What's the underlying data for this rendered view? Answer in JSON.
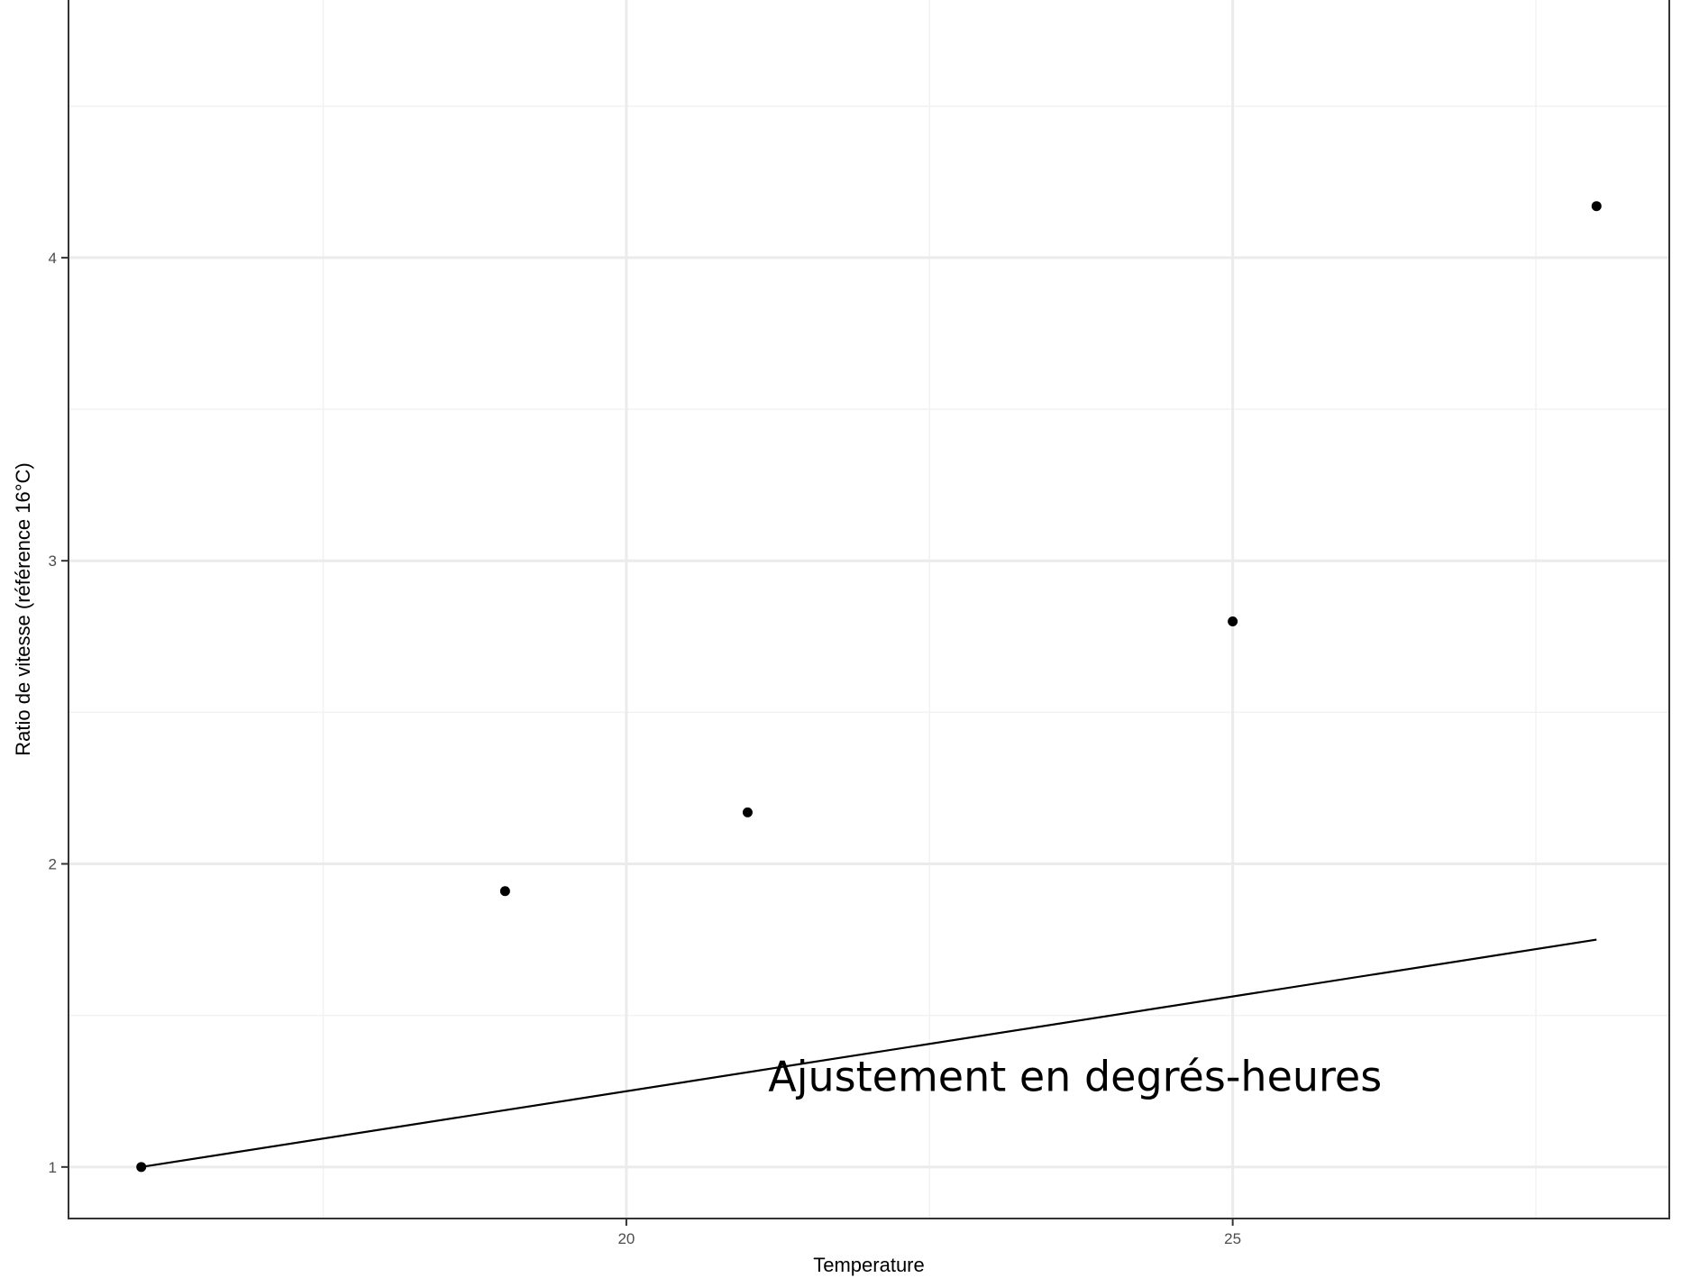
{
  "chart_data": {
    "type": "scatter",
    "title": "",
    "xlabel": "Temperature",
    "ylabel": "Ratio de vitesse (référence 16°C)",
    "xlim": [
      15.4,
      28.6
    ],
    "ylim": [
      0.83,
      4.85
    ],
    "x_ticks": [
      20,
      25
    ],
    "y_ticks": [
      1,
      2,
      3,
      4
    ],
    "grid": true,
    "legend": "none",
    "series": [
      {
        "type": "scatter",
        "points": [
          {
            "x": 16.0,
            "y": 1.0
          },
          {
            "x": 19.0,
            "y": 1.91
          },
          {
            "x": 21.0,
            "y": 2.17
          },
          {
            "x": 25.0,
            "y": 2.8
          },
          {
            "x": 28.0,
            "y": 4.17
          }
        ]
      },
      {
        "type": "line",
        "points": [
          {
            "x": 16.0,
            "y": 1.0
          },
          {
            "x": 28.0,
            "y": 1.75
          }
        ]
      }
    ],
    "annotations": [
      {
        "text": "Ajustement en degrés-heures",
        "x": 23.7,
        "y": 1.25
      }
    ],
    "colors": {
      "points": "#000000",
      "line": "#000000",
      "grid_major": "#ebebeb",
      "grid_minor": "#f2f2f2",
      "panel_border": "#333333"
    }
  }
}
